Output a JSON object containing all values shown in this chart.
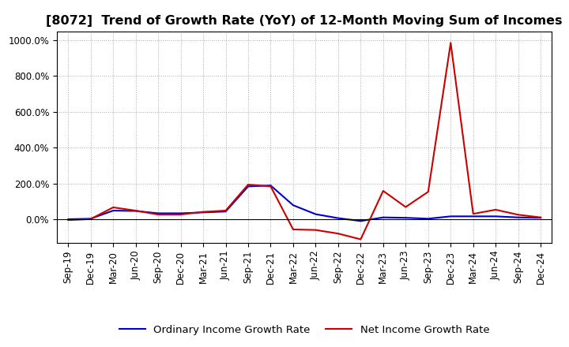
{
  "title": "[8072]  Trend of Growth Rate (YoY) of 12-Month Moving Sum of Incomes",
  "title_fontsize": 11.5,
  "background_color": "#ffffff",
  "grid_color": "#aaaaaa",
  "ylim": [
    -130,
    1050
  ],
  "yticks": [
    0,
    200,
    400,
    600,
    800,
    1000
  ],
  "ytick_labels": [
    "0.0%",
    "200.0%",
    "400.0%",
    "600.0%",
    "800.0%",
    "1000.0%"
  ],
  "xtick_labels": [
    "Sep-19",
    "Dec-19",
    "Mar-20",
    "Jun-20",
    "Sep-20",
    "Dec-20",
    "Mar-21",
    "Jun-21",
    "Sep-21",
    "Dec-21",
    "Mar-22",
    "Jun-22",
    "Sep-22",
    "Dec-22",
    "Mar-23",
    "Jun-23",
    "Sep-23",
    "Dec-23",
    "Mar-24",
    "Jun-24",
    "Sep-24",
    "Dec-24"
  ],
  "ordinary_income": [
    2,
    5,
    50,
    48,
    35,
    35,
    40,
    45,
    185,
    190,
    80,
    30,
    8,
    -8,
    12,
    10,
    5,
    18,
    18,
    18,
    12,
    10
  ],
  "net_income": [
    -3,
    3,
    68,
    50,
    28,
    28,
    43,
    50,
    195,
    185,
    -55,
    -58,
    -78,
    -110,
    160,
    70,
    155,
    985,
    32,
    55,
    27,
    12
  ],
  "ordinary_color": "#0000cc",
  "net_color": "#cc0000",
  "line_width": 1.5,
  "legend_ordinary": "Ordinary Income Growth Rate",
  "legend_net": "Net Income Growth Rate",
  "legend_fontsize": 9.5,
  "tick_fontsize": 8.5
}
